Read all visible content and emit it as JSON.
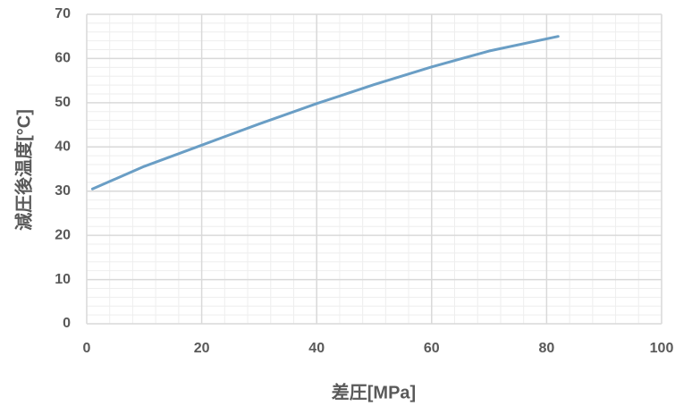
{
  "chart_data": {
    "type": "line",
    "xlabel": "差圧[MPa]",
    "ylabel": "減圧後温度[°C]",
    "x": [
      1,
      10,
      20,
      30,
      40,
      50,
      60,
      70,
      82
    ],
    "values": [
      30.5,
      35.6,
      40.4,
      45.2,
      49.8,
      54.1,
      58.1,
      61.7,
      65.0
    ],
    "color": "#6a9ec5",
    "xlim": [
      0,
      100
    ],
    "xticks": [
      0,
      20,
      40,
      60,
      80,
      100
    ],
    "ylim": [
      0,
      70
    ],
    "yticks": [
      0,
      10,
      20,
      30,
      40,
      50,
      60,
      70
    ],
    "grid": true,
    "minor_grid": true
  }
}
